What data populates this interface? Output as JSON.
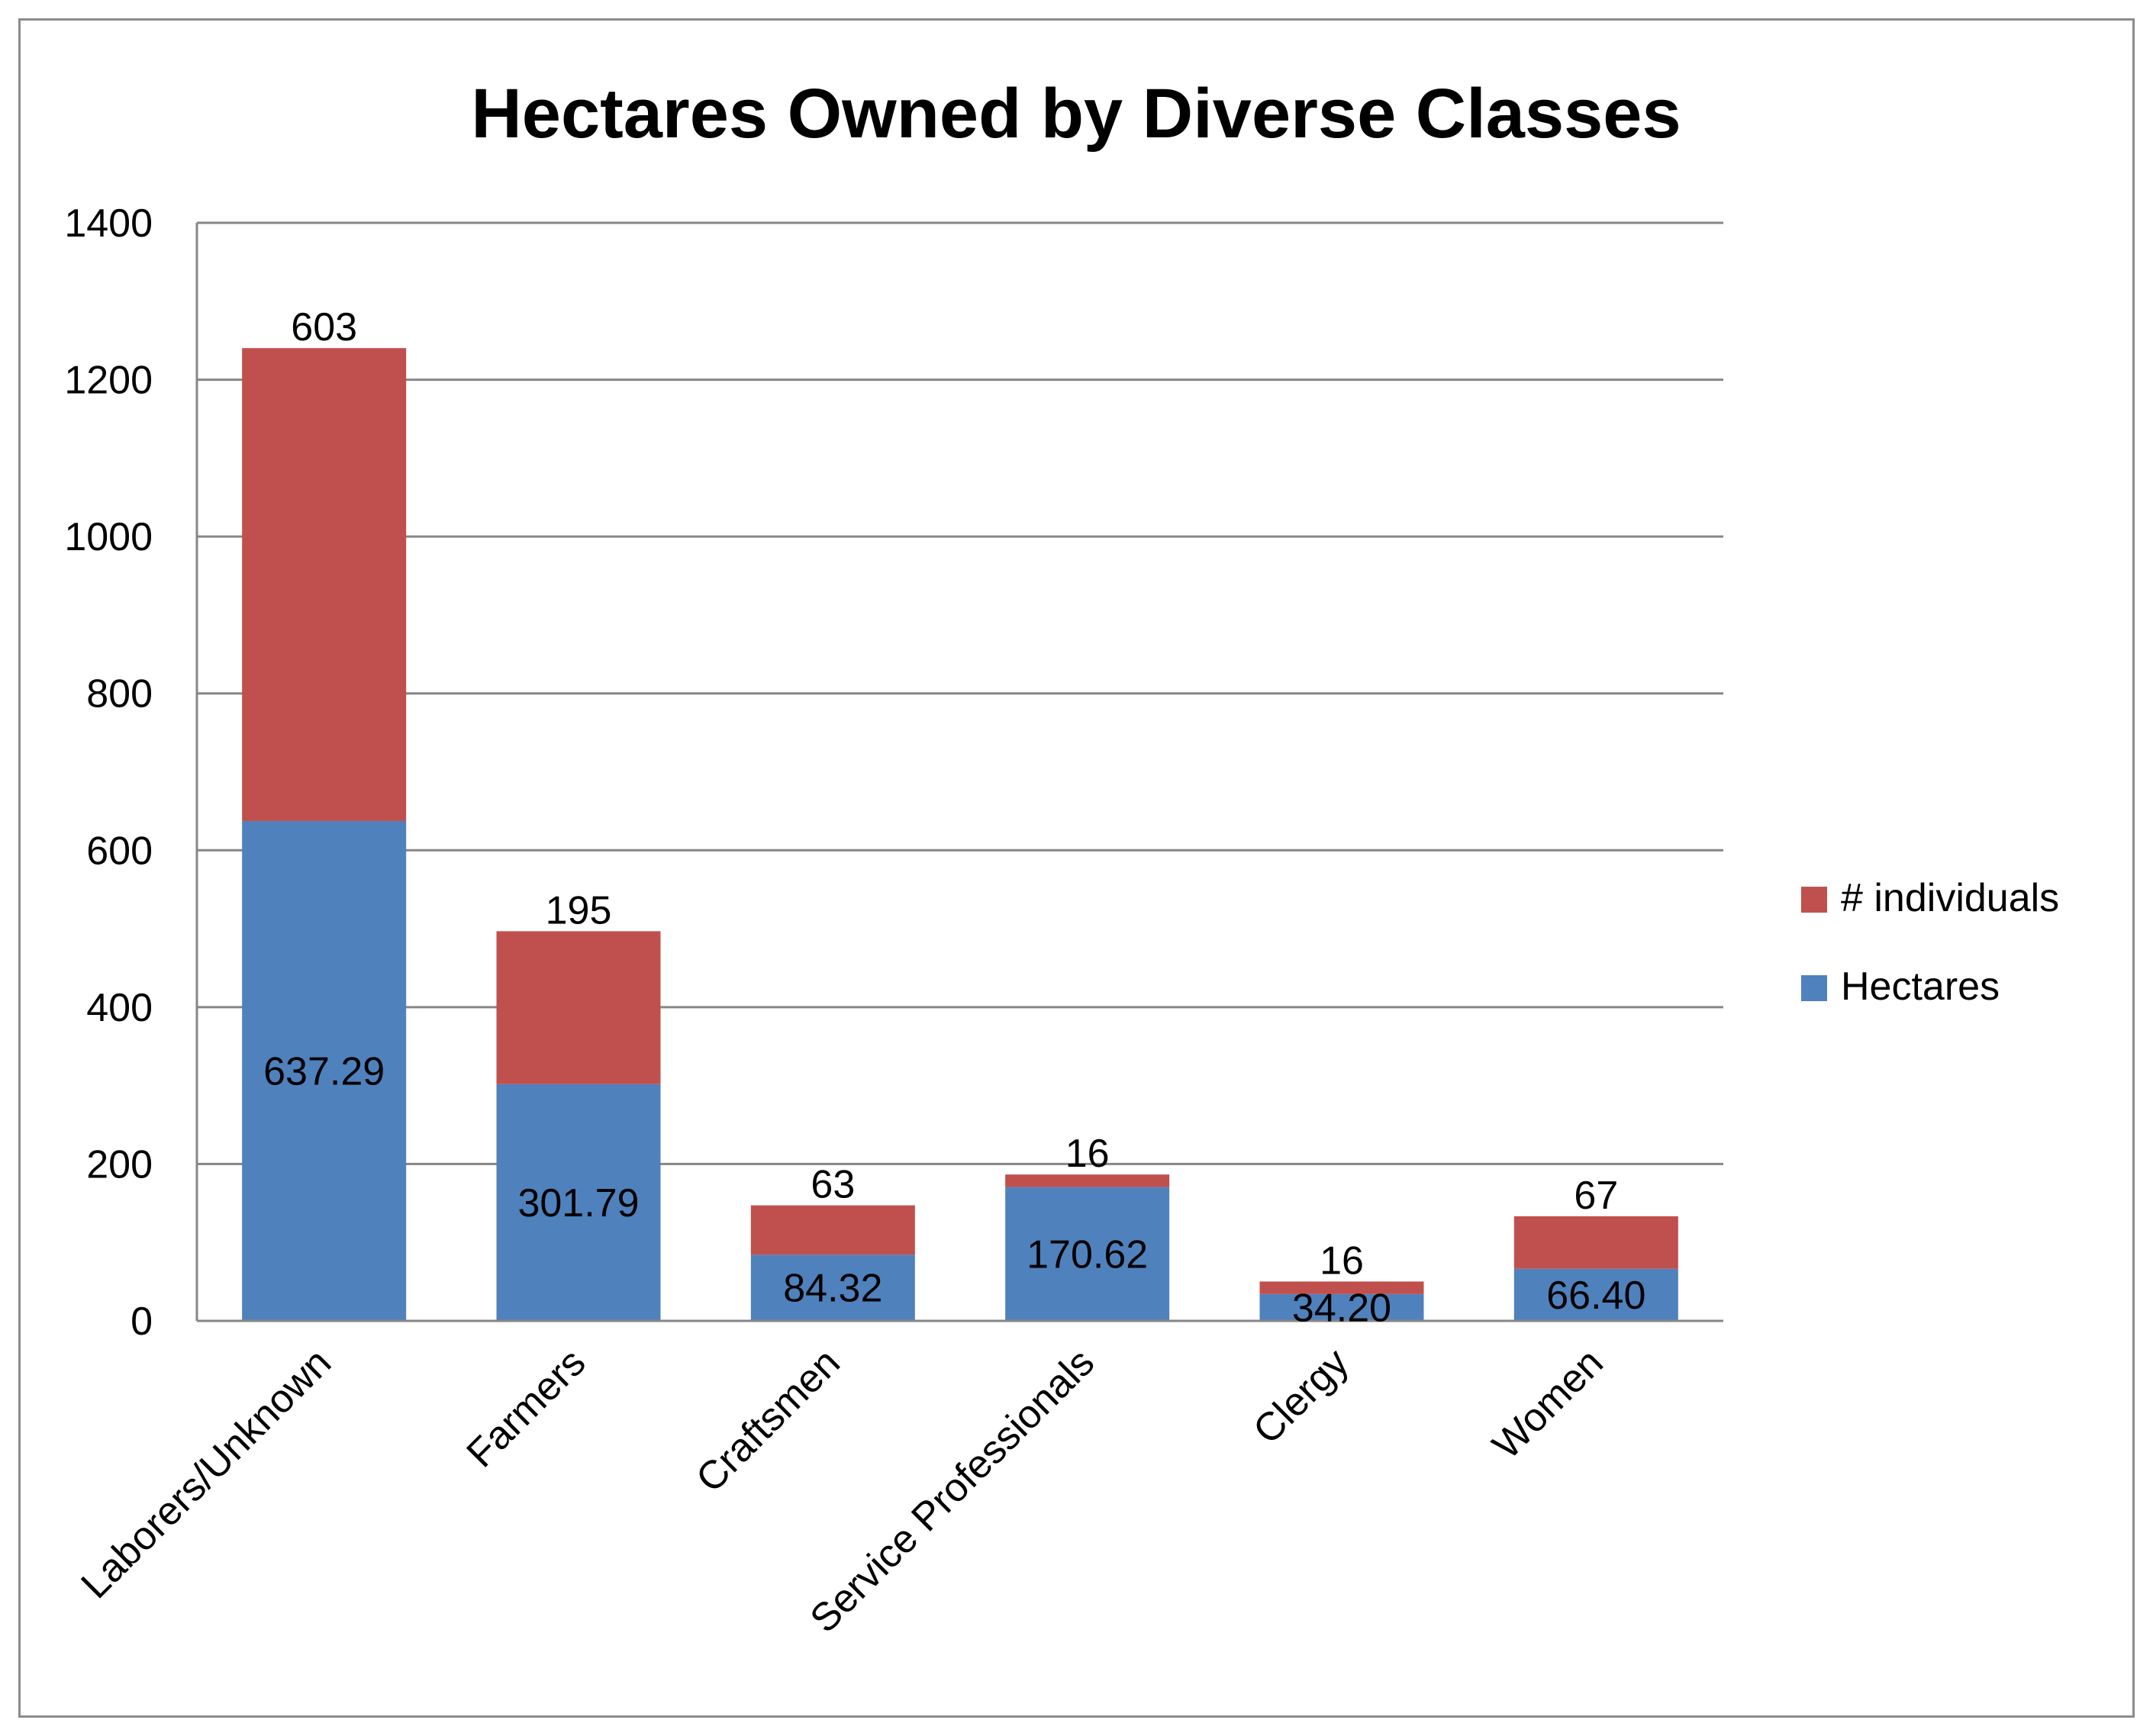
{
  "chart_data": {
    "type": "bar",
    "stacked": true,
    "title": "Hectares Owned by Diverse Classes",
    "xlabel": "",
    "ylabel": "",
    "ylim": [
      0,
      1400
    ],
    "yticks": [
      "0",
      "200",
      "400",
      "600",
      "800",
      "1000",
      "1200",
      "1400"
    ],
    "grid": true,
    "legend_position": "right",
    "categories": [
      "Laborers/Unknown",
      "Farmers",
      "Craftsmen",
      "Service Professionals",
      "Clergy",
      "Women"
    ],
    "series": [
      {
        "name": "Hectares",
        "color": "#4f81bd",
        "values": [
          637.29,
          301.79,
          84.32,
          170.62,
          34.2,
          66.4
        ],
        "labels": [
          "637.29",
          "301.79",
          "84.32",
          "170.62",
          "34.20",
          "66.40"
        ]
      },
      {
        "name": "# individuals",
        "color": "#c0504d",
        "values": [
          603,
          195,
          63,
          16,
          16,
          67
        ],
        "labels": [
          "603",
          "195",
          "63",
          "16",
          "16",
          "67"
        ]
      }
    ],
    "legend_order": [
      "# individuals",
      "Hectares"
    ]
  }
}
